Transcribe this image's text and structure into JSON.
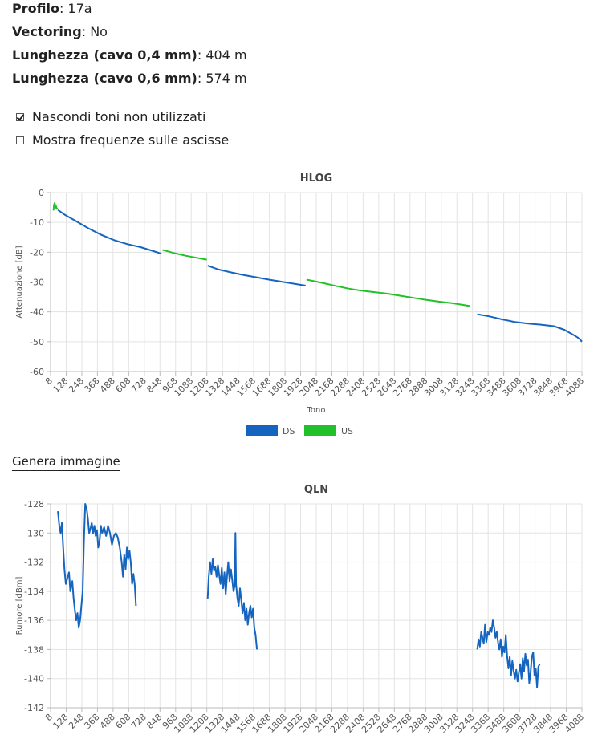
{
  "info": {
    "profilo_label": "Profilo",
    "profilo_value": "17a",
    "vectoring_label": "Vectoring",
    "vectoring_value": "No",
    "lung04_label": "Lunghezza (cavo 0,4 mm)",
    "lung04_value": "404 m",
    "lung06_label": "Lunghezza (cavo 0,6 mm)",
    "lung06_value": "574 m"
  },
  "options": {
    "hide_unused_label": "Nascondi toni non utilizzati",
    "hide_unused_checked": true,
    "show_freq_label": "Mostra frequenze sulle ascisse",
    "show_freq_checked": false
  },
  "generate_label": "Genera immagine",
  "chart_data": [
    {
      "type": "line",
      "title": "HLOG",
      "xlabel": "Tono",
      "ylabel": "Attenuazione [dB]",
      "xlim": [
        8,
        4095
      ],
      "ylim": [
        -60,
        0
      ],
      "yticks": [
        0,
        -10,
        -20,
        -30,
        -40,
        -50,
        -60
      ],
      "xtick_labels": [
        "8",
        "128",
        "248",
        "368",
        "488",
        "608",
        "728",
        "848",
        "968",
        "1088",
        "1208",
        "1328",
        "1448",
        "1568",
        "1688",
        "1808",
        "1928",
        "2048",
        "2168",
        "2288",
        "2408",
        "2528",
        "2648",
        "2768",
        "2888",
        "3008",
        "3128",
        "3248",
        "3368",
        "3488",
        "3608",
        "3728",
        "3848",
        "3968",
        "4088"
      ],
      "grid": true,
      "legend_position": "bottom",
      "legend": [
        {
          "name": "DS",
          "color": "#1565c0"
        },
        {
          "name": "US",
          "color": "#22c02a"
        }
      ],
      "series": [
        {
          "name": "US",
          "color": "#22c02a",
          "points": [
            [
              30,
              -6
            ],
            [
              35,
              -4
            ],
            [
              40,
              -3.5
            ],
            [
              45,
              -5
            ],
            [
              50,
              -4.5
            ],
            [
              55,
              -5.5
            ],
            [
              60,
              -5
            ]
          ]
        },
        {
          "name": "DS",
          "color": "#1565c0",
          "points": [
            [
              64,
              -5.8
            ],
            [
              120,
              -7.5
            ],
            [
              200,
              -9.5
            ],
            [
              300,
              -12
            ],
            [
              400,
              -14.2
            ],
            [
              500,
              -16
            ],
            [
              600,
              -17.3
            ],
            [
              700,
              -18.3
            ],
            [
              790,
              -19.5
            ],
            [
              860,
              -20.5
            ]
          ]
        },
        {
          "name": "US",
          "color": "#22c02a",
          "points": [
            [
              870,
              -19.2
            ],
            [
              950,
              -20.2
            ],
            [
              1050,
              -21.2
            ],
            [
              1150,
              -22
            ],
            [
              1210,
              -22.5
            ]
          ]
        },
        {
          "name": "DS",
          "color": "#1565c0",
          "points": [
            [
              1216,
              -24.5
            ],
            [
              1300,
              -25.8
            ],
            [
              1400,
              -26.8
            ],
            [
              1500,
              -27.7
            ],
            [
              1600,
              -28.5
            ],
            [
              1700,
              -29.3
            ],
            [
              1800,
              -30
            ],
            [
              1900,
              -30.7
            ],
            [
              1970,
              -31.2
            ]
          ]
        },
        {
          "name": "US",
          "color": "#22c02a",
          "points": [
            [
              1976,
              -29.2
            ],
            [
              2100,
              -30.3
            ],
            [
              2200,
              -31.3
            ],
            [
              2300,
              -32.2
            ],
            [
              2400,
              -32.9
            ],
            [
              2500,
              -33.4
            ],
            [
              2600,
              -33.9
            ],
            [
              2700,
              -34.6
            ],
            [
              2800,
              -35.3
            ],
            [
              2900,
              -36
            ],
            [
              3000,
              -36.6
            ],
            [
              3100,
              -37.1
            ],
            [
              3200,
              -37.8
            ],
            [
              3230,
              -38
            ]
          ]
        },
        {
          "name": "DS",
          "color": "#1565c0",
          "points": [
            [
              3290,
              -40.8
            ],
            [
              3380,
              -41.5
            ],
            [
              3480,
              -42.5
            ],
            [
              3580,
              -43.4
            ],
            [
              3680,
              -43.9
            ],
            [
              3780,
              -44.3
            ],
            [
              3880,
              -44.8
            ],
            [
              3960,
              -46
            ],
            [
              4020,
              -47.5
            ],
            [
              4060,
              -48.5
            ],
            [
              4080,
              -49.2
            ],
            [
              4095,
              -50
            ]
          ]
        }
      ]
    },
    {
      "type": "line",
      "title": "QLN",
      "xlabel": "",
      "ylabel": "Rumore [dBm]",
      "xlim": [
        8,
        4095
      ],
      "ylim": [
        -142,
        -128
      ],
      "yticks": [
        -128,
        -130,
        -132,
        -134,
        -136,
        -138,
        -140,
        -142
      ],
      "xtick_labels": [
        "8",
        "128",
        "248",
        "368",
        "488",
        "608",
        "728",
        "848",
        "968",
        "1088",
        "1208",
        "1328",
        "1448",
        "1568",
        "1688",
        "1808",
        "1928",
        "2048",
        "2168",
        "2288",
        "2408",
        "2528",
        "2648",
        "2768",
        "2888",
        "3008",
        "3128",
        "3248",
        "3368",
        "3488",
        "3608",
        "3728",
        "3848",
        "3968",
        "4088"
      ],
      "grid": true,
      "series": [
        {
          "name": "DS",
          "color": "#1565c0",
          "points": [
            [
              64,
              -128.5
            ],
            [
              75,
              -129.5
            ],
            [
              85,
              -130
            ],
            [
              95,
              -129.3
            ],
            [
              105,
              -131
            ],
            [
              115,
              -132.5
            ],
            [
              125,
              -133.5
            ],
            [
              140,
              -133
            ],
            [
              150,
              -132.7
            ],
            [
              160,
              -134
            ],
            [
              175,
              -133.3
            ],
            [
              185,
              -134.5
            ],
            [
              195,
              -135.3
            ],
            [
              205,
              -136
            ],
            [
              215,
              -135.5
            ],
            [
              225,
              -136.5
            ],
            [
              235,
              -136
            ],
            [
              245,
              -135
            ],
            [
              255,
              -134
            ],
            [
              265,
              -130.5
            ],
            [
              275,
              -128
            ],
            [
              285,
              -128.3
            ],
            [
              295,
              -129
            ],
            [
              305,
              -130
            ],
            [
              315,
              -129.7
            ],
            [
              325,
              -129.3
            ],
            [
              335,
              -130
            ],
            [
              345,
              -129.5
            ],
            [
              355,
              -130.2
            ],
            [
              365,
              -129.8
            ],
            [
              375,
              -131
            ],
            [
              385,
              -130.5
            ],
            [
              395,
              -129.5
            ],
            [
              405,
              -130
            ],
            [
              420,
              -129.6
            ],
            [
              435,
              -130.2
            ],
            [
              450,
              -129.5
            ],
            [
              465,
              -130
            ],
            [
              480,
              -130.8
            ],
            [
              495,
              -130.2
            ],
            [
              510,
              -130
            ],
            [
              525,
              -130.3
            ],
            [
              540,
              -131
            ],
            [
              555,
              -132
            ],
            [
              565,
              -133
            ],
            [
              575,
              -131.5
            ],
            [
              585,
              -132.5
            ],
            [
              595,
              -131
            ],
            [
              605,
              -131.8
            ],
            [
              615,
              -131.2
            ],
            [
              625,
              -132
            ],
            [
              635,
              -133.5
            ],
            [
              645,
              -132.8
            ],
            [
              655,
              -133.5
            ],
            [
              665,
              -135
            ]
          ]
        },
        {
          "name": "DS",
          "color": "#1565c0",
          "points": [
            [
              1216,
              -134.5
            ],
            [
              1225,
              -133
            ],
            [
              1235,
              -132
            ],
            [
              1245,
              -132.8
            ],
            [
              1255,
              -131.8
            ],
            [
              1265,
              -132.6
            ],
            [
              1275,
              -132.3
            ],
            [
              1285,
              -133
            ],
            [
              1295,
              -132.2
            ],
            [
              1305,
              -132.9
            ],
            [
              1315,
              -133.5
            ],
            [
              1325,
              -132.4
            ],
            [
              1335,
              -133.8
            ],
            [
              1345,
              -132.7
            ],
            [
              1355,
              -134.2
            ],
            [
              1365,
              -133
            ],
            [
              1375,
              -132
            ],
            [
              1385,
              -133.3
            ],
            [
              1395,
              -132.5
            ],
            [
              1405,
              -133.2
            ],
            [
              1415,
              -134
            ],
            [
              1425,
              -133.6
            ],
            [
              1430,
              -130
            ],
            [
              1435,
              -133.5
            ],
            [
              1445,
              -134.5
            ],
            [
              1455,
              -135
            ],
            [
              1465,
              -133.8
            ],
            [
              1475,
              -134.6
            ],
            [
              1485,
              -135.5
            ],
            [
              1495,
              -134.8
            ],
            [
              1505,
              -136
            ],
            [
              1515,
              -135.2
            ],
            [
              1525,
              -136.3
            ],
            [
              1535,
              -135.5
            ],
            [
              1545,
              -135
            ],
            [
              1555,
              -135.8
            ],
            [
              1565,
              -135.2
            ],
            [
              1575,
              -136.5
            ],
            [
              1585,
              -137
            ],
            [
              1595,
              -138
            ]
          ]
        },
        {
          "name": "DS",
          "color": "#1565c0",
          "points": [
            [
              3290,
              -138
            ],
            [
              3300,
              -137.3
            ],
            [
              3310,
              -137.8
            ],
            [
              3320,
              -136.8
            ],
            [
              3330,
              -137.2
            ],
            [
              3340,
              -137.6
            ],
            [
              3350,
              -136.3
            ],
            [
              3360,
              -137.5
            ],
            [
              3370,
              -136.8
            ],
            [
              3380,
              -137
            ],
            [
              3390,
              -136.5
            ],
            [
              3400,
              -136.8
            ],
            [
              3410,
              -136
            ],
            [
              3420,
              -136.5
            ],
            [
              3430,
              -137.2
            ],
            [
              3440,
              -136.8
            ],
            [
              3450,
              -137.5
            ],
            [
              3460,
              -138
            ],
            [
              3470,
              -137.3
            ],
            [
              3480,
              -138.5
            ],
            [
              3490,
              -137.8
            ],
            [
              3500,
              -138.2
            ],
            [
              3510,
              -137
            ],
            [
              3520,
              -138.5
            ],
            [
              3530,
              -139.3
            ],
            [
              3540,
              -138.5
            ],
            [
              3550,
              -139.8
            ],
            [
              3560,
              -138.8
            ],
            [
              3570,
              -139.5
            ],
            [
              3580,
              -140
            ],
            [
              3590,
              -139.4
            ],
            [
              3600,
              -140.2
            ],
            [
              3610,
              -139.6
            ],
            [
              3620,
              -139
            ],
            [
              3630,
              -140
            ],
            [
              3640,
              -138.6
            ],
            [
              3650,
              -139.5
            ],
            [
              3660,
              -138.3
            ],
            [
              3670,
              -139.1
            ],
            [
              3680,
              -138.7
            ],
            [
              3690,
              -140.3
            ],
            [
              3700,
              -139.6
            ],
            [
              3710,
              -138.5
            ],
            [
              3720,
              -138.2
            ],
            [
              3730,
              -139.8
            ],
            [
              3740,
              -139.3
            ],
            [
              3750,
              -140.6
            ],
            [
              3760,
              -139.2
            ],
            [
              3770,
              -139
            ]
          ]
        }
      ]
    }
  ]
}
